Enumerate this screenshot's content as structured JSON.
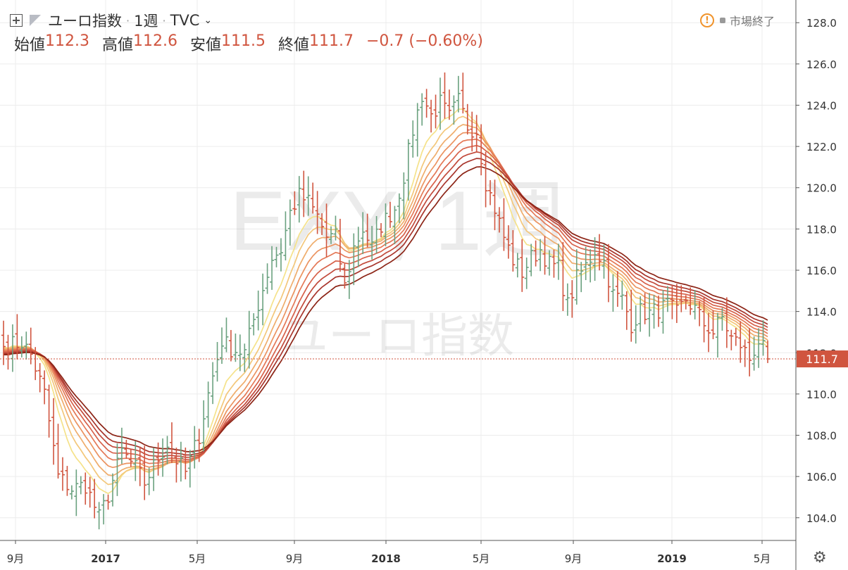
{
  "header": {
    "symbol": "ユーロ指数",
    "interval": "1週",
    "source": "TVC",
    "status_text": "市場終了",
    "ohlc": [
      {
        "label": "始値",
        "value": "112.3"
      },
      {
        "label": "高値",
        "value": "112.6"
      },
      {
        "label": "安値",
        "value": "111.5"
      },
      {
        "label": "終値",
        "value": "111.7"
      }
    ],
    "change": "−0.7 (−0.60%)"
  },
  "watermark": {
    "line1": "EXY, 1週",
    "line2": "ユーロ指数"
  },
  "colors": {
    "up": "#6aa17f",
    "down": "#d0553f",
    "grid": "#ececec",
    "axis": "#555555"
  },
  "ribbon_colors": [
    "#f5e28a",
    "#f3c77a",
    "#efad6c",
    "#eb9360",
    "#e47856",
    "#d7614a",
    "#c24a3b",
    "#a8352c",
    "#8c2416"
  ],
  "chart_data": {
    "type": "ohlc",
    "title": "ユーロ指数",
    "ylim": [
      102.9,
      129.1
    ],
    "y_ticks": [
      "104.0",
      "106.0",
      "108.0",
      "110.0",
      "112.0",
      "114.0",
      "116.0",
      "118.0",
      "120.0",
      "122.0",
      "124.0",
      "126.0",
      "128.0"
    ],
    "x_ticks": [
      "9月",
      "2017",
      "5月",
      "9月",
      "2018",
      "5月",
      "9月",
      "2019",
      "5月"
    ],
    "last_price": "111.7",
    "moving_average_ribbon": "9 exponential moving averages",
    "weekly_close_anchors": [
      [
        0,
        112.3
      ],
      [
        4,
        112.5
      ],
      [
        6,
        111.9
      ],
      [
        9,
        110.0
      ],
      [
        12,
        106.0
      ],
      [
        15,
        105.4
      ],
      [
        18,
        105.6
      ],
      [
        21,
        104.0
      ],
      [
        23,
        105.1
      ],
      [
        26,
        107.2
      ],
      [
        29,
        106.4
      ],
      [
        31,
        105.7
      ],
      [
        34,
        106.9
      ],
      [
        36,
        107.6
      ],
      [
        38,
        106.8
      ],
      [
        40,
        106.2
      ],
      [
        43,
        108.0
      ],
      [
        45,
        110.0
      ],
      [
        48,
        112.6
      ],
      [
        50,
        112.2
      ],
      [
        53,
        112.0
      ],
      [
        55,
        113.6
      ],
      [
        57,
        115.1
      ],
      [
        59,
        116.6
      ],
      [
        61,
        117.0
      ],
      [
        63,
        118.8
      ],
      [
        65,
        119.6
      ],
      [
        67,
        119.3
      ],
      [
        69,
        118.6
      ],
      [
        71,
        117.6
      ],
      [
        73,
        117.6
      ],
      [
        75,
        115.2
      ],
      [
        77,
        117.1
      ],
      [
        79,
        118.0
      ],
      [
        81,
        117.1
      ],
      [
        83,
        118.2
      ],
      [
        86,
        119.0
      ],
      [
        88,
        120.6
      ],
      [
        90,
        122.8
      ],
      [
        92,
        124.5
      ],
      [
        94,
        123.5
      ],
      [
        96,
        124.1
      ],
      [
        98,
        123.4
      ],
      [
        100,
        124.2
      ],
      [
        102,
        123.0
      ],
      [
        104,
        122.8
      ],
      [
        106,
        120.3
      ],
      [
        108,
        119.0
      ],
      [
        110,
        117.6
      ],
      [
        112,
        116.5
      ],
      [
        114,
        115.9
      ],
      [
        116,
        116.6
      ],
      [
        118,
        117.0
      ],
      [
        120,
        116.3
      ],
      [
        122,
        116.1
      ],
      [
        124,
        114.3
      ],
      [
        126,
        115.6
      ],
      [
        128,
        116.2
      ],
      [
        130,
        117.0
      ],
      [
        132,
        116.4
      ],
      [
        134,
        114.8
      ],
      [
        136,
        114.6
      ],
      [
        138,
        113.4
      ],
      [
        140,
        114.0
      ],
      [
        142,
        113.9
      ],
      [
        144,
        114.1
      ],
      [
        146,
        114.3
      ],
      [
        148,
        113.9
      ],
      [
        150,
        114.6
      ],
      [
        152,
        114.1
      ],
      [
        154,
        113.4
      ],
      [
        156,
        113.0
      ],
      [
        158,
        113.7
      ],
      [
        160,
        112.7
      ],
      [
        162,
        112.4
      ],
      [
        164,
        111.7
      ],
      [
        166,
        112.6
      ],
      [
        168,
        111.7
      ]
    ]
  },
  "settings": {
    "gear_icon": "gear-icon"
  }
}
